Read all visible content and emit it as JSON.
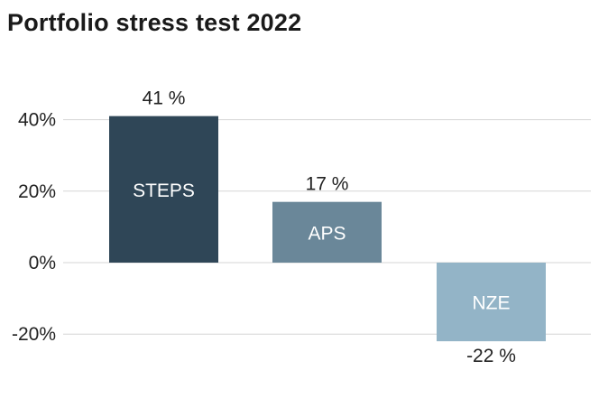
{
  "chart_data": {
    "type": "bar",
    "title": "Portfolio stress test 2022",
    "xlabel": "",
    "ylabel": "",
    "categories": [
      "STEPS",
      "APS",
      "NZE"
    ],
    "values": [
      41,
      17,
      -22
    ],
    "value_labels": [
      "41 %",
      "17 %",
      "-22 %"
    ],
    "colors": [
      "#2f4657",
      "#6a8799",
      "#93b4c7"
    ],
    "ylim": [
      -22,
      41
    ],
    "yticks": [
      40,
      20,
      0,
      -20
    ],
    "ytick_labels": [
      "40%",
      "20%",
      "0%",
      "-20%"
    ],
    "grid": true,
    "legend": "none"
  }
}
